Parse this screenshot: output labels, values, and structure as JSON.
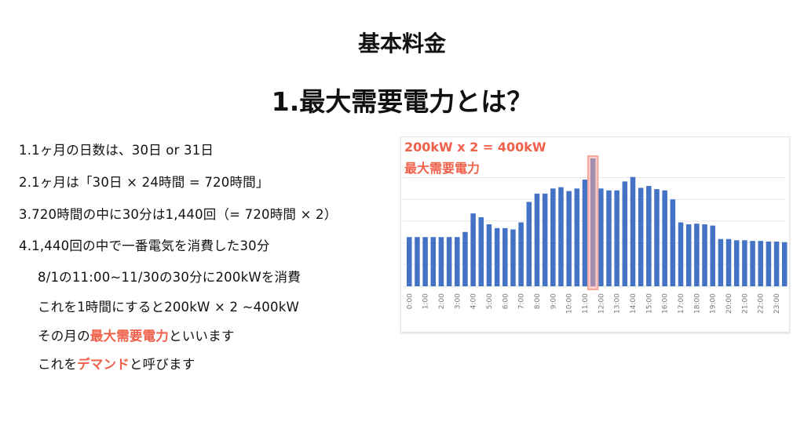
{
  "slide": {
    "title": "基本料金",
    "subtitle": "1.最大需要電力とは？",
    "lines": [
      {
        "parts": [
          {
            "text": "1.1ヶ月の日数は、30日 or 31日",
            "em": false
          }
        ]
      },
      {
        "parts": [
          {
            "text": "2.1ヶ月は「30日 × 24時間 = 720時間」",
            "em": false
          }
        ]
      },
      {
        "parts": [
          {
            "text": "3.720時間の中に30分は1,440回（= 720時間 × 2）",
            "em": false
          }
        ]
      },
      {
        "parts": [
          {
            "text": "4.1,440回の中で一番電気を消費した30分",
            "em": false
          }
        ]
      },
      {
        "parts": [
          {
            "text": "8/1の11:00~11/30の30分に200kWを消費",
            "em": false
          }
        ]
      },
      {
        "parts": [
          {
            "text": "これを1時間にすると200kW × 2 ~400kW",
            "em": false
          }
        ]
      },
      {
        "parts": [
          {
            "text": "その月の",
            "em": false
          },
          {
            "text": "最大需要電力",
            "em": true
          },
          {
            "text": "といいます",
            "em": false
          }
        ]
      },
      {
        "parts": [
          {
            "text": "これを",
            "em": false
          },
          {
            "text": "デマンド",
            "em": true
          },
          {
            "text": "と呼びます",
            "em": false
          }
        ]
      }
    ]
  },
  "chart_data": {
    "type": "bar",
    "annotation": [
      "200kW x 2 = 400kW",
      "最大需要電力"
    ],
    "tick_labels": [
      "0:00",
      "1:00",
      "2:00",
      "3:00",
      "4:00",
      "5:00",
      "6:00",
      "7:00",
      "8:00",
      "9:00",
      "10:00",
      "11:00",
      "12:00",
      "13:00",
      "14:00",
      "15:00",
      "16:00",
      "17:00",
      "18:00",
      "19:00",
      "20:00",
      "21:00",
      "22:00",
      "23:00"
    ],
    "categories": [
      "0:00",
      "0:30",
      "1:00",
      "1:30",
      "2:00",
      "2:30",
      "3:00",
      "3:30",
      "4:00",
      "4:30",
      "5:00",
      "5:30",
      "6:00",
      "6:30",
      "7:00",
      "7:30",
      "8:00",
      "8:30",
      "9:00",
      "9:30",
      "10:00",
      "10:30",
      "11:00",
      "11:30",
      "12:00",
      "12:30",
      "13:00",
      "13:30",
      "14:00",
      "14:30",
      "15:00",
      "15:30",
      "16:00",
      "16:30",
      "17:00",
      "17:30",
      "18:00",
      "18:30",
      "19:00",
      "19:30",
      "20:00",
      "20:30",
      "21:00",
      "21:30",
      "22:00",
      "22:30",
      "23:00",
      "23:30"
    ],
    "values": [
      77,
      77,
      77,
      77,
      77,
      77,
      77,
      85,
      114,
      108,
      97,
      91,
      91,
      89,
      100,
      132,
      145,
      145,
      153,
      155,
      149,
      153,
      167,
      200,
      153,
      150,
      150,
      164,
      171,
      154,
      157,
      152,
      150,
      136,
      100,
      97,
      98,
      97,
      95,
      74,
      74,
      72,
      72,
      71,
      71,
      70,
      70,
      69
    ],
    "unit": "kW",
    "highlight_index": 23,
    "ylim": [
      0,
      210
    ],
    "grid": true,
    "colors": {
      "bar": "#4472c4",
      "highlight": "#f4a6a0",
      "annotation": "#f0604a"
    }
  }
}
